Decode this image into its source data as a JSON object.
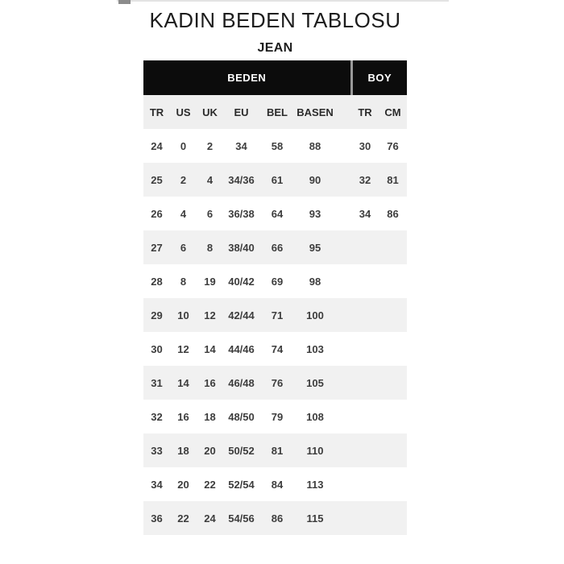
{
  "header": {
    "title": "KADIN BEDEN TABLOSU",
    "subtitle": "JEAN"
  },
  "table": {
    "group_headers": [
      {
        "label": "BEDEN",
        "colspan": 6
      },
      {
        "label": "BOY",
        "colspan": 2
      }
    ],
    "columns": [
      "TR",
      "US",
      "UK",
      "EU",
      "BEL",
      "BASEN",
      "TR",
      "CM"
    ],
    "rows": [
      [
        "24",
        "0",
        "2",
        "34",
        "58",
        "88",
        "30",
        "76"
      ],
      [
        "25",
        "2",
        "4",
        "34/36",
        "61",
        "90",
        "32",
        "81"
      ],
      [
        "26",
        "4",
        "6",
        "36/38",
        "64",
        "93",
        "34",
        "86"
      ],
      [
        "27",
        "6",
        "8",
        "38/40",
        "66",
        "95",
        "",
        ""
      ],
      [
        "28",
        "8",
        "19",
        "40/42",
        "69",
        "98",
        "",
        ""
      ],
      [
        "29",
        "10",
        "12",
        "42/44",
        "71",
        "100",
        "",
        ""
      ],
      [
        "30",
        "12",
        "14",
        "44/46",
        "74",
        "103",
        "",
        ""
      ],
      [
        "31",
        "14",
        "16",
        "46/48",
        "76",
        "105",
        "",
        ""
      ],
      [
        "32",
        "16",
        "18",
        "48/50",
        "79",
        "108",
        "",
        ""
      ],
      [
        "33",
        "18",
        "20",
        "50/52",
        "81",
        "110",
        "",
        ""
      ],
      [
        "34",
        "20",
        "22",
        "52/54",
        "84",
        "113",
        "",
        ""
      ],
      [
        "36",
        "22",
        "24",
        "54/56",
        "86",
        "115",
        "",
        ""
      ]
    ]
  },
  "colors": {
    "bar_bg": "#0c0c0c",
    "bar_text": "#ffffff",
    "bar_divider": "#999999",
    "header_row_bg": "#efefef",
    "stripe_bg": "#f1f1f1",
    "data_text": "#3d3d3d",
    "title_text": "#1c1c1c"
  }
}
